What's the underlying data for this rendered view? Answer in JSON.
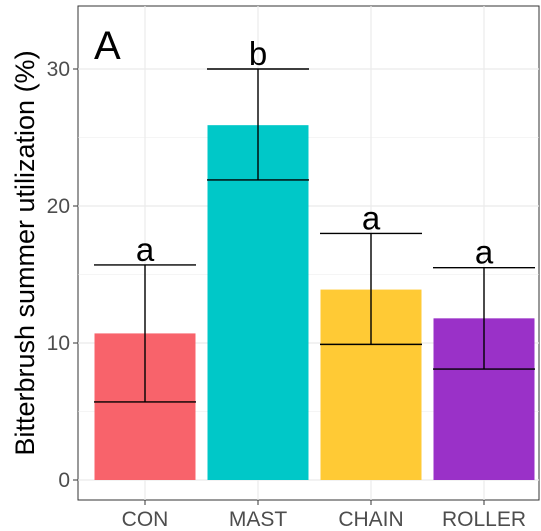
{
  "chart_data": {
    "type": "bar",
    "panel_label": "A",
    "ylabel": "Bitterbrush summer utilization (%)",
    "xlabel": "",
    "categories": [
      "CON",
      "MAST",
      "CHAIN",
      "ROLLER"
    ],
    "values": [
      10.7,
      25.9,
      13.9,
      11.8
    ],
    "error_low": [
      5.7,
      21.9,
      9.9,
      8.1
    ],
    "error_high": [
      15.7,
      30.0,
      18.0,
      15.5
    ],
    "significance": [
      "a",
      "b",
      "a",
      "a"
    ],
    "colors": [
      "#f8636b",
      "#00c8c8",
      "#ffca35",
      "#9a31c8"
    ],
    "ylim": [
      0,
      33.5
    ],
    "yticks": [
      "0",
      "10",
      "20",
      "30"
    ],
    "grid": true
  }
}
